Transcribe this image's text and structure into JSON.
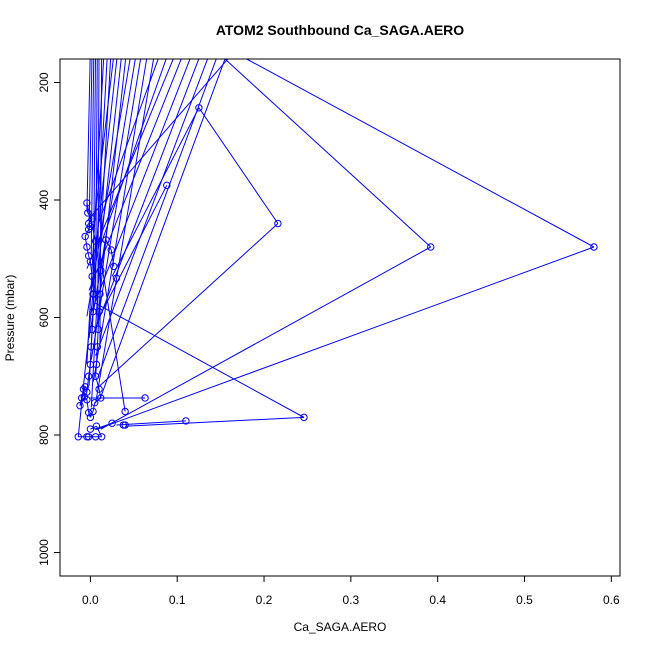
{
  "chart_data": {
    "type": "line",
    "title": "ATOM2 Southbound Ca_SAGA.AERO",
    "xlabel": "Ca_SAGA.AERO",
    "ylabel": "Pressure (mbar)",
    "xlim": [
      -0.035,
      0.61
    ],
    "ylim": [
      1040,
      160
    ],
    "y_reversed": true,
    "grid": false,
    "x_ticks": [
      0.0,
      0.1,
      0.2,
      0.3,
      0.4,
      0.5,
      0.6
    ],
    "x_tick_labels": [
      "0.0",
      "0.1",
      "0.2",
      "0.3",
      "0.4",
      "0.5",
      "0.6"
    ],
    "y_ticks": [
      200,
      400,
      600,
      800,
      1000
    ],
    "y_tick_labels": [
      "200",
      "400",
      "600",
      "800",
      "1000"
    ],
    "series_color": "#0000ff",
    "marker": "open-circle",
    "segments": [
      [
        [
          0.58,
          480
        ],
        [
          0.18,
          160
        ]
      ],
      [
        [
          0.58,
          480
        ],
        [
          0.008,
          790
        ]
      ],
      [
        [
          0.392,
          480
        ],
        [
          0.155,
          160
        ]
      ],
      [
        [
          0.392,
          480
        ],
        [
          0.012,
          790
        ]
      ],
      [
        [
          0.216,
          440
        ],
        [
          0.125,
          243
        ]
      ],
      [
        [
          0.125,
          243
        ],
        [
          0.025,
          530
        ]
      ],
      [
        [
          0.216,
          440
        ],
        [
          0.008,
          720
        ]
      ],
      [
        [
          0.088,
          375
        ],
        [
          0.01,
          600
        ]
      ],
      [
        [
          0.246,
          770
        ],
        [
          0.005,
          575
        ]
      ],
      [
        [
          0.246,
          770
        ],
        [
          0.04,
          785
        ]
      ],
      [
        [
          0.11,
          776
        ],
        [
          0.03,
          783
        ]
      ],
      [
        [
          0.063,
          737
        ],
        [
          0.0,
          737
        ]
      ],
      [
        [
          0.04,
          760
        ],
        [
          0.012,
          500
        ]
      ],
      [
        [
          0.025,
          780
        ],
        [
          0.005,
          790
        ]
      ]
    ],
    "points": [
      [
        0.58,
        480
      ],
      [
        0.392,
        480
      ],
      [
        0.216,
        440
      ],
      [
        0.125,
        243
      ],
      [
        0.088,
        375
      ],
      [
        0.246,
        770
      ],
      [
        0.11,
        776
      ],
      [
        0.063,
        737
      ],
      [
        0.04,
        760
      ],
      [
        0.04,
        783
      ],
      [
        0.038,
        783
      ],
      [
        0.025,
        780
      ],
      [
        0.03,
        533
      ],
      [
        0.027,
        513
      ],
      [
        0.024,
        485
      ],
      [
        0.018,
        468
      ],
      [
        0.012,
        520
      ],
      [
        0.011,
        560
      ],
      [
        0.01,
        590
      ],
      [
        0.009,
        620
      ],
      [
        0.008,
        650
      ],
      [
        0.007,
        680
      ],
      [
        0.006,
        700
      ],
      [
        0.01,
        722
      ],
      [
        0.012,
        737
      ],
      [
        0.005,
        745
      ],
      [
        0.003,
        760
      ],
      [
        0.0,
        770
      ],
      [
        -0.002,
        762
      ],
      [
        -0.004,
        740
      ],
      [
        -0.007,
        735
      ],
      [
        -0.008,
        722
      ],
      [
        -0.006,
        718
      ],
      [
        -0.01,
        737
      ],
      [
        -0.012,
        750
      ],
      [
        -0.004,
        727
      ],
      [
        -0.002,
        700
      ],
      [
        0.0,
        680
      ],
      [
        0.001,
        650
      ],
      [
        0.002,
        620
      ],
      [
        0.003,
        590
      ],
      [
        0.004,
        560
      ],
      [
        0.002,
        530
      ],
      [
        0.0,
        505
      ],
      [
        -0.002,
        495
      ],
      [
        -0.004,
        480
      ],
      [
        -0.006,
        462
      ],
      [
        -0.002,
        450
      ],
      [
        0.0,
        445
      ],
      [
        -0.002,
        440
      ],
      [
        0.002,
        432
      ],
      [
        -0.003,
        422
      ],
      [
        -0.004,
        405
      ],
      [
        0.006,
        470
      ],
      [
        0.003,
        560
      ],
      [
        -0.014,
        803
      ],
      [
        -0.004,
        803
      ],
      [
        -0.002,
        803
      ],
      [
        0.006,
        803
      ],
      [
        0.013,
        803
      ],
      [
        0.007,
        785
      ],
      [
        0.0,
        790
      ]
    ],
    "top_lines_x": [
      0.0,
      0.002,
      0.004,
      0.006,
      0.008,
      0.01,
      0.013,
      0.016,
      0.02,
      0.024,
      0.028,
      0.032,
      0.037,
      0.042,
      0.048,
      0.054,
      0.06,
      0.067,
      0.075,
      0.083,
      0.092,
      0.101,
      0.11,
      0.12,
      0.13,
      0.14,
      0.15,
      0.16,
      0.17
    ]
  }
}
